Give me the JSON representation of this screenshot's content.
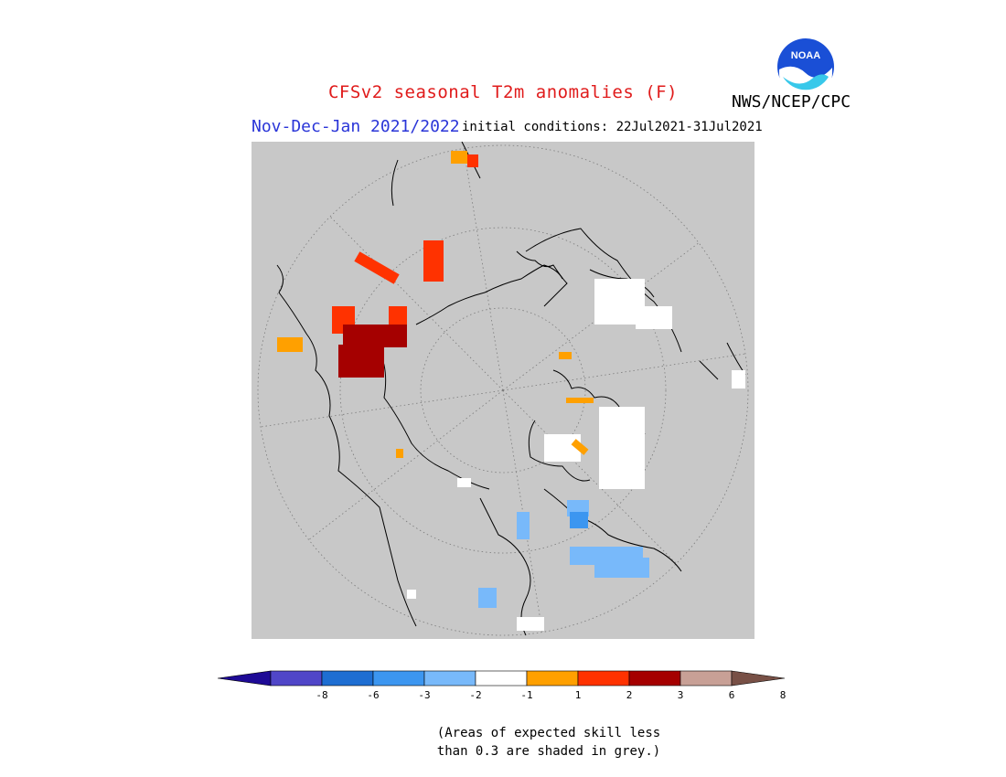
{
  "header": {
    "title": "CFSv2 seasonal T2m anomalies (F)",
    "agency": "NWS/NCEP/CPC",
    "logo_text": "NOAA",
    "season": "Nov-Dec-Jan 2021/2022",
    "initial_conditions": "initial conditions: 22Jul2021-31Jul2021"
  },
  "map": {
    "projection": "north polar stereographic",
    "background_color": "#c8c8c8",
    "graticule": "dotted"
  },
  "colorbar": {
    "tick_labels": [
      "-8",
      "-6",
      "-3",
      "-2",
      "-1",
      "1",
      "2",
      "3",
      "6",
      "8"
    ],
    "colors": [
      "#1e0a96",
      "#5046c8",
      "#1e6ed2",
      "#3c96f0",
      "#78b9fa",
      "#ffffff",
      "#ffa000",
      "#ff3200",
      "#a50000",
      "#c8a096",
      "#785046"
    ]
  },
  "legend_note": {
    "line1": "(Areas of expected skill less",
    "line2": "than 0.3 are shaded in grey.)"
  }
}
